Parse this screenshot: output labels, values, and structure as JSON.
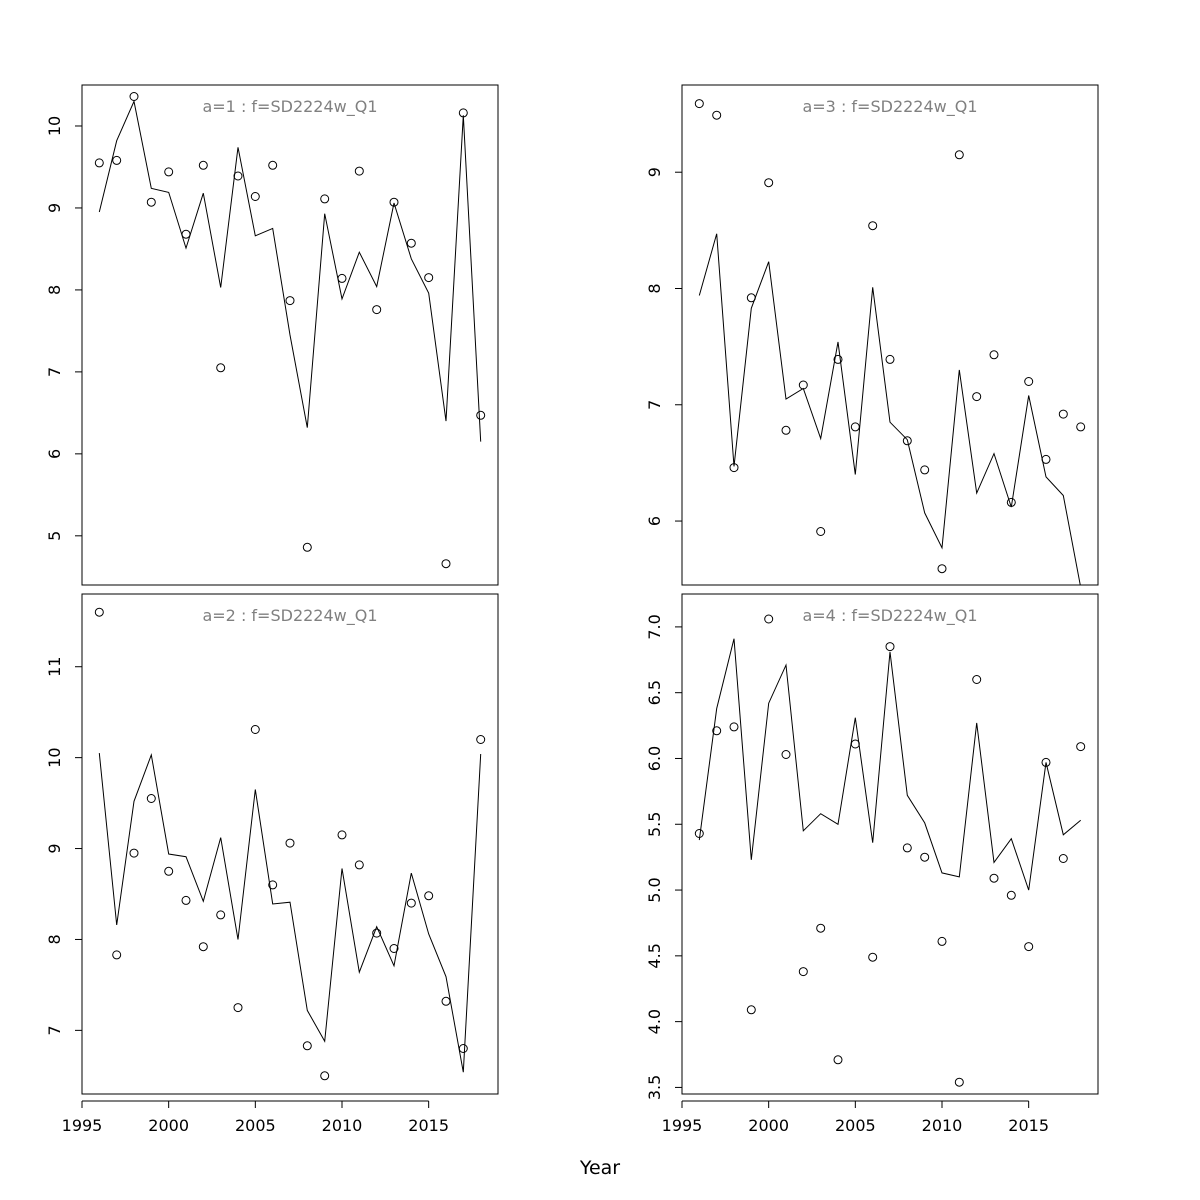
{
  "xlabel": "Year",
  "chart_data": [
    {
      "type": "scatter",
      "title": "a=1  :  f=SD2224w_Q1",
      "xlabel": "Year",
      "ylabel": "",
      "x": [
        1996,
        1997,
        1998,
        1999,
        2000,
        2001,
        2002,
        2003,
        2004,
        2005,
        2006,
        2007,
        2008,
        2009,
        2010,
        2011,
        2012,
        2013,
        2014,
        2015,
        2016,
        2017,
        2018
      ],
      "xlim": [
        1995,
        2019
      ],
      "xticks": [
        1995,
        2000,
        2005,
        2010,
        2015
      ],
      "ylim": [
        4.4,
        10.5
      ],
      "yticks": [
        5,
        6,
        7,
        8,
        9,
        10
      ],
      "ytick_labels": [
        "5",
        "6",
        "7",
        "8",
        "9",
        "10"
      ],
      "series": [
        {
          "kind": "points",
          "values": [
            9.55,
            9.58,
            10.36,
            9.07,
            9.44,
            8.68,
            9.52,
            7.05,
            9.39,
            9.14,
            9.52,
            7.87,
            4.86,
            9.11,
            8.14,
            9.45,
            7.76,
            9.07,
            8.57,
            8.15,
            4.66,
            10.16,
            6.47
          ]
        },
        {
          "kind": "line",
          "values": [
            8.95,
            9.82,
            10.3,
            9.24,
            9.19,
            8.51,
            9.18,
            8.03,
            9.74,
            8.66,
            8.75,
            7.45,
            6.32,
            8.93,
            7.89,
            8.46,
            8.04,
            9.06,
            8.38,
            7.96,
            6.4,
            10.13,
            6.15
          ]
        }
      ]
    },
    {
      "type": "scatter",
      "title": "a=3  :  f=SD2224w_Q1",
      "xlabel": "Year",
      "ylabel": "",
      "x": [
        1996,
        1997,
        1998,
        1999,
        2000,
        2001,
        2002,
        2003,
        2004,
        2005,
        2006,
        2007,
        2008,
        2009,
        2010,
        2011,
        2012,
        2013,
        2014,
        2015,
        2016,
        2017,
        2018
      ],
      "xlim": [
        1995,
        2019
      ],
      "xticks": [
        1995,
        2000,
        2005,
        2010,
        2015
      ],
      "ylim": [
        5.45,
        9.75
      ],
      "yticks": [
        6,
        7,
        8,
        9
      ],
      "ytick_labels": [
        "6",
        "7",
        "8",
        "9"
      ],
      "series": [
        {
          "kind": "points",
          "values": [
            9.59,
            9.49,
            6.46,
            7.92,
            8.91,
            6.78,
            7.17,
            5.91,
            7.39,
            6.81,
            8.54,
            7.39,
            6.69,
            6.44,
            5.59,
            9.15,
            7.07,
            7.43,
            6.16,
            7.2,
            6.53,
            6.92,
            6.81
          ]
        },
        {
          "kind": "line",
          "values": [
            7.94,
            8.47,
            6.47,
            7.83,
            8.23,
            7.05,
            7.14,
            6.71,
            7.54,
            6.4,
            8.01,
            6.85,
            6.7,
            6.07,
            5.77,
            7.3,
            6.24,
            6.58,
            6.12,
            7.08,
            6.38,
            6.22,
            5.43
          ]
        }
      ]
    },
    {
      "type": "scatter",
      "title": "a=2  :  f=SD2224w_Q1",
      "xlabel": "Year",
      "ylabel": "",
      "x": [
        1996,
        1997,
        1998,
        1999,
        2000,
        2001,
        2002,
        2003,
        2004,
        2005,
        2006,
        2007,
        2008,
        2009,
        2010,
        2011,
        2012,
        2013,
        2014,
        2015,
        2016,
        2017,
        2018
      ],
      "xlim": [
        1995,
        2019
      ],
      "xticks": [
        1995,
        2000,
        2005,
        2010,
        2015
      ],
      "ylim": [
        6.3,
        11.8
      ],
      "yticks": [
        7,
        8,
        9,
        10,
        11
      ],
      "ytick_labels": [
        "7",
        "8",
        "9",
        "10",
        "11"
      ],
      "series": [
        {
          "kind": "points",
          "values": [
            11.6,
            7.83,
            8.95,
            9.55,
            8.75,
            8.43,
            7.92,
            8.27,
            7.25,
            10.31,
            8.6,
            9.06,
            6.83,
            6.5,
            9.15,
            8.82,
            8.07,
            7.9,
            8.4,
            8.48,
            7.32,
            6.8,
            10.2
          ]
        },
        {
          "kind": "line",
          "values": [
            10.05,
            8.16,
            9.52,
            10.03,
            8.94,
            8.91,
            8.42,
            9.12,
            8.0,
            9.65,
            8.39,
            8.41,
            7.22,
            6.88,
            8.78,
            7.64,
            8.14,
            7.71,
            8.73,
            8.06,
            7.59,
            6.54,
            10.04
          ]
        }
      ]
    },
    {
      "type": "scatter",
      "title": "a=4  :  f=SD2224w_Q1",
      "xlabel": "Year",
      "ylabel": "",
      "x": [
        1996,
        1997,
        1998,
        1999,
        2000,
        2001,
        2002,
        2003,
        2004,
        2005,
        2006,
        2007,
        2008,
        2009,
        2010,
        2011,
        2012,
        2013,
        2014,
        2015,
        2016,
        2017,
        2018
      ],
      "xlim": [
        1995,
        2019
      ],
      "xticks": [
        1995,
        2000,
        2005,
        2010,
        2015
      ],
      "ylim": [
        3.45,
        7.25
      ],
      "yticks": [
        3.5,
        4.0,
        4.5,
        5.0,
        5.5,
        6.0,
        6.5,
        7.0
      ],
      "ytick_labels": [
        "3.5",
        "4.0",
        "4.5",
        "5.0",
        "5.5",
        "6.0",
        "6.5",
        "7.0"
      ],
      "series": [
        {
          "kind": "points",
          "values": [
            5.43,
            6.21,
            6.24,
            4.09,
            7.06,
            6.03,
            4.38,
            4.71,
            3.71,
            6.11,
            4.49,
            6.85,
            5.32,
            5.25,
            4.61,
            3.54,
            6.6,
            5.09,
            4.96,
            4.57,
            5.97,
            5.24,
            6.09
          ]
        },
        {
          "kind": "line",
          "values": [
            5.38,
            6.38,
            6.91,
            5.23,
            6.42,
            6.71,
            5.45,
            5.58,
            5.5,
            6.31,
            5.36,
            6.81,
            5.72,
            5.51,
            5.13,
            5.1,
            6.27,
            5.21,
            5.39,
            5.0,
            5.97,
            5.42,
            5.53
          ]
        }
      ]
    }
  ]
}
